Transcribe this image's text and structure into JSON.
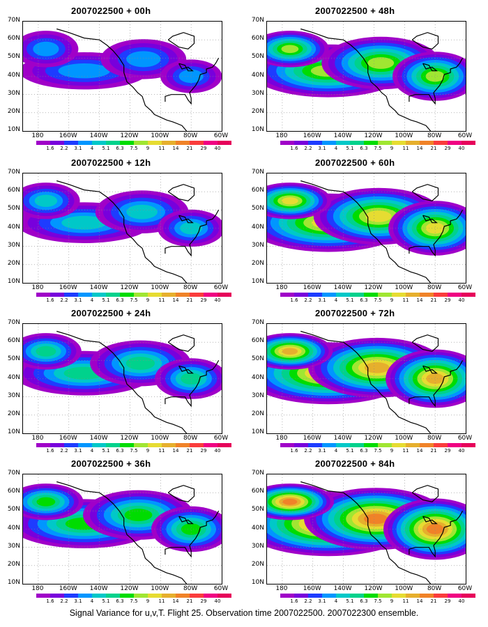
{
  "caption": "Signal Variance for u,v,T. Flight 25. Observation time 2007022500. 2007022300 ensemble.",
  "panels": [
    {
      "title": "2007022500 + 00h",
      "intensity": 0.12
    },
    {
      "title": "2007022500 + 48h",
      "intensity": 0.55
    },
    {
      "title": "2007022500 + 12h",
      "intensity": 0.22
    },
    {
      "title": "2007022500 + 60h",
      "intensity": 0.7
    },
    {
      "title": "2007022500 + 24h",
      "intensity": 0.32
    },
    {
      "title": "2007022500 + 72h",
      "intensity": 0.8
    },
    {
      "title": "2007022500 + 36h",
      "intensity": 0.45
    },
    {
      "title": "2007022500 + 84h",
      "intensity": 0.88
    }
  ],
  "lat_labels": [
    "70N",
    "60N",
    "50N",
    "40N",
    "30N",
    "20N",
    "10N"
  ],
  "lon_labels": [
    "180",
    "160W",
    "140W",
    "120W",
    "100W",
    "80W",
    "60W"
  ],
  "colorbar": {
    "labels": [
      "1.6",
      "2.2",
      "3.1",
      "4",
      "5.1",
      "6.3",
      "7.5",
      "9",
      "11",
      "14",
      "21",
      "29",
      "40"
    ],
    "colors": [
      "#a000c8",
      "#7800dc",
      "#1e3cff",
      "#0096ff",
      "#00c8c8",
      "#00d28c",
      "#00dc00",
      "#a0e632",
      "#e6dc32",
      "#e6af2d",
      "#f08228",
      "#fa3c3c",
      "#f00082"
    ]
  }
}
